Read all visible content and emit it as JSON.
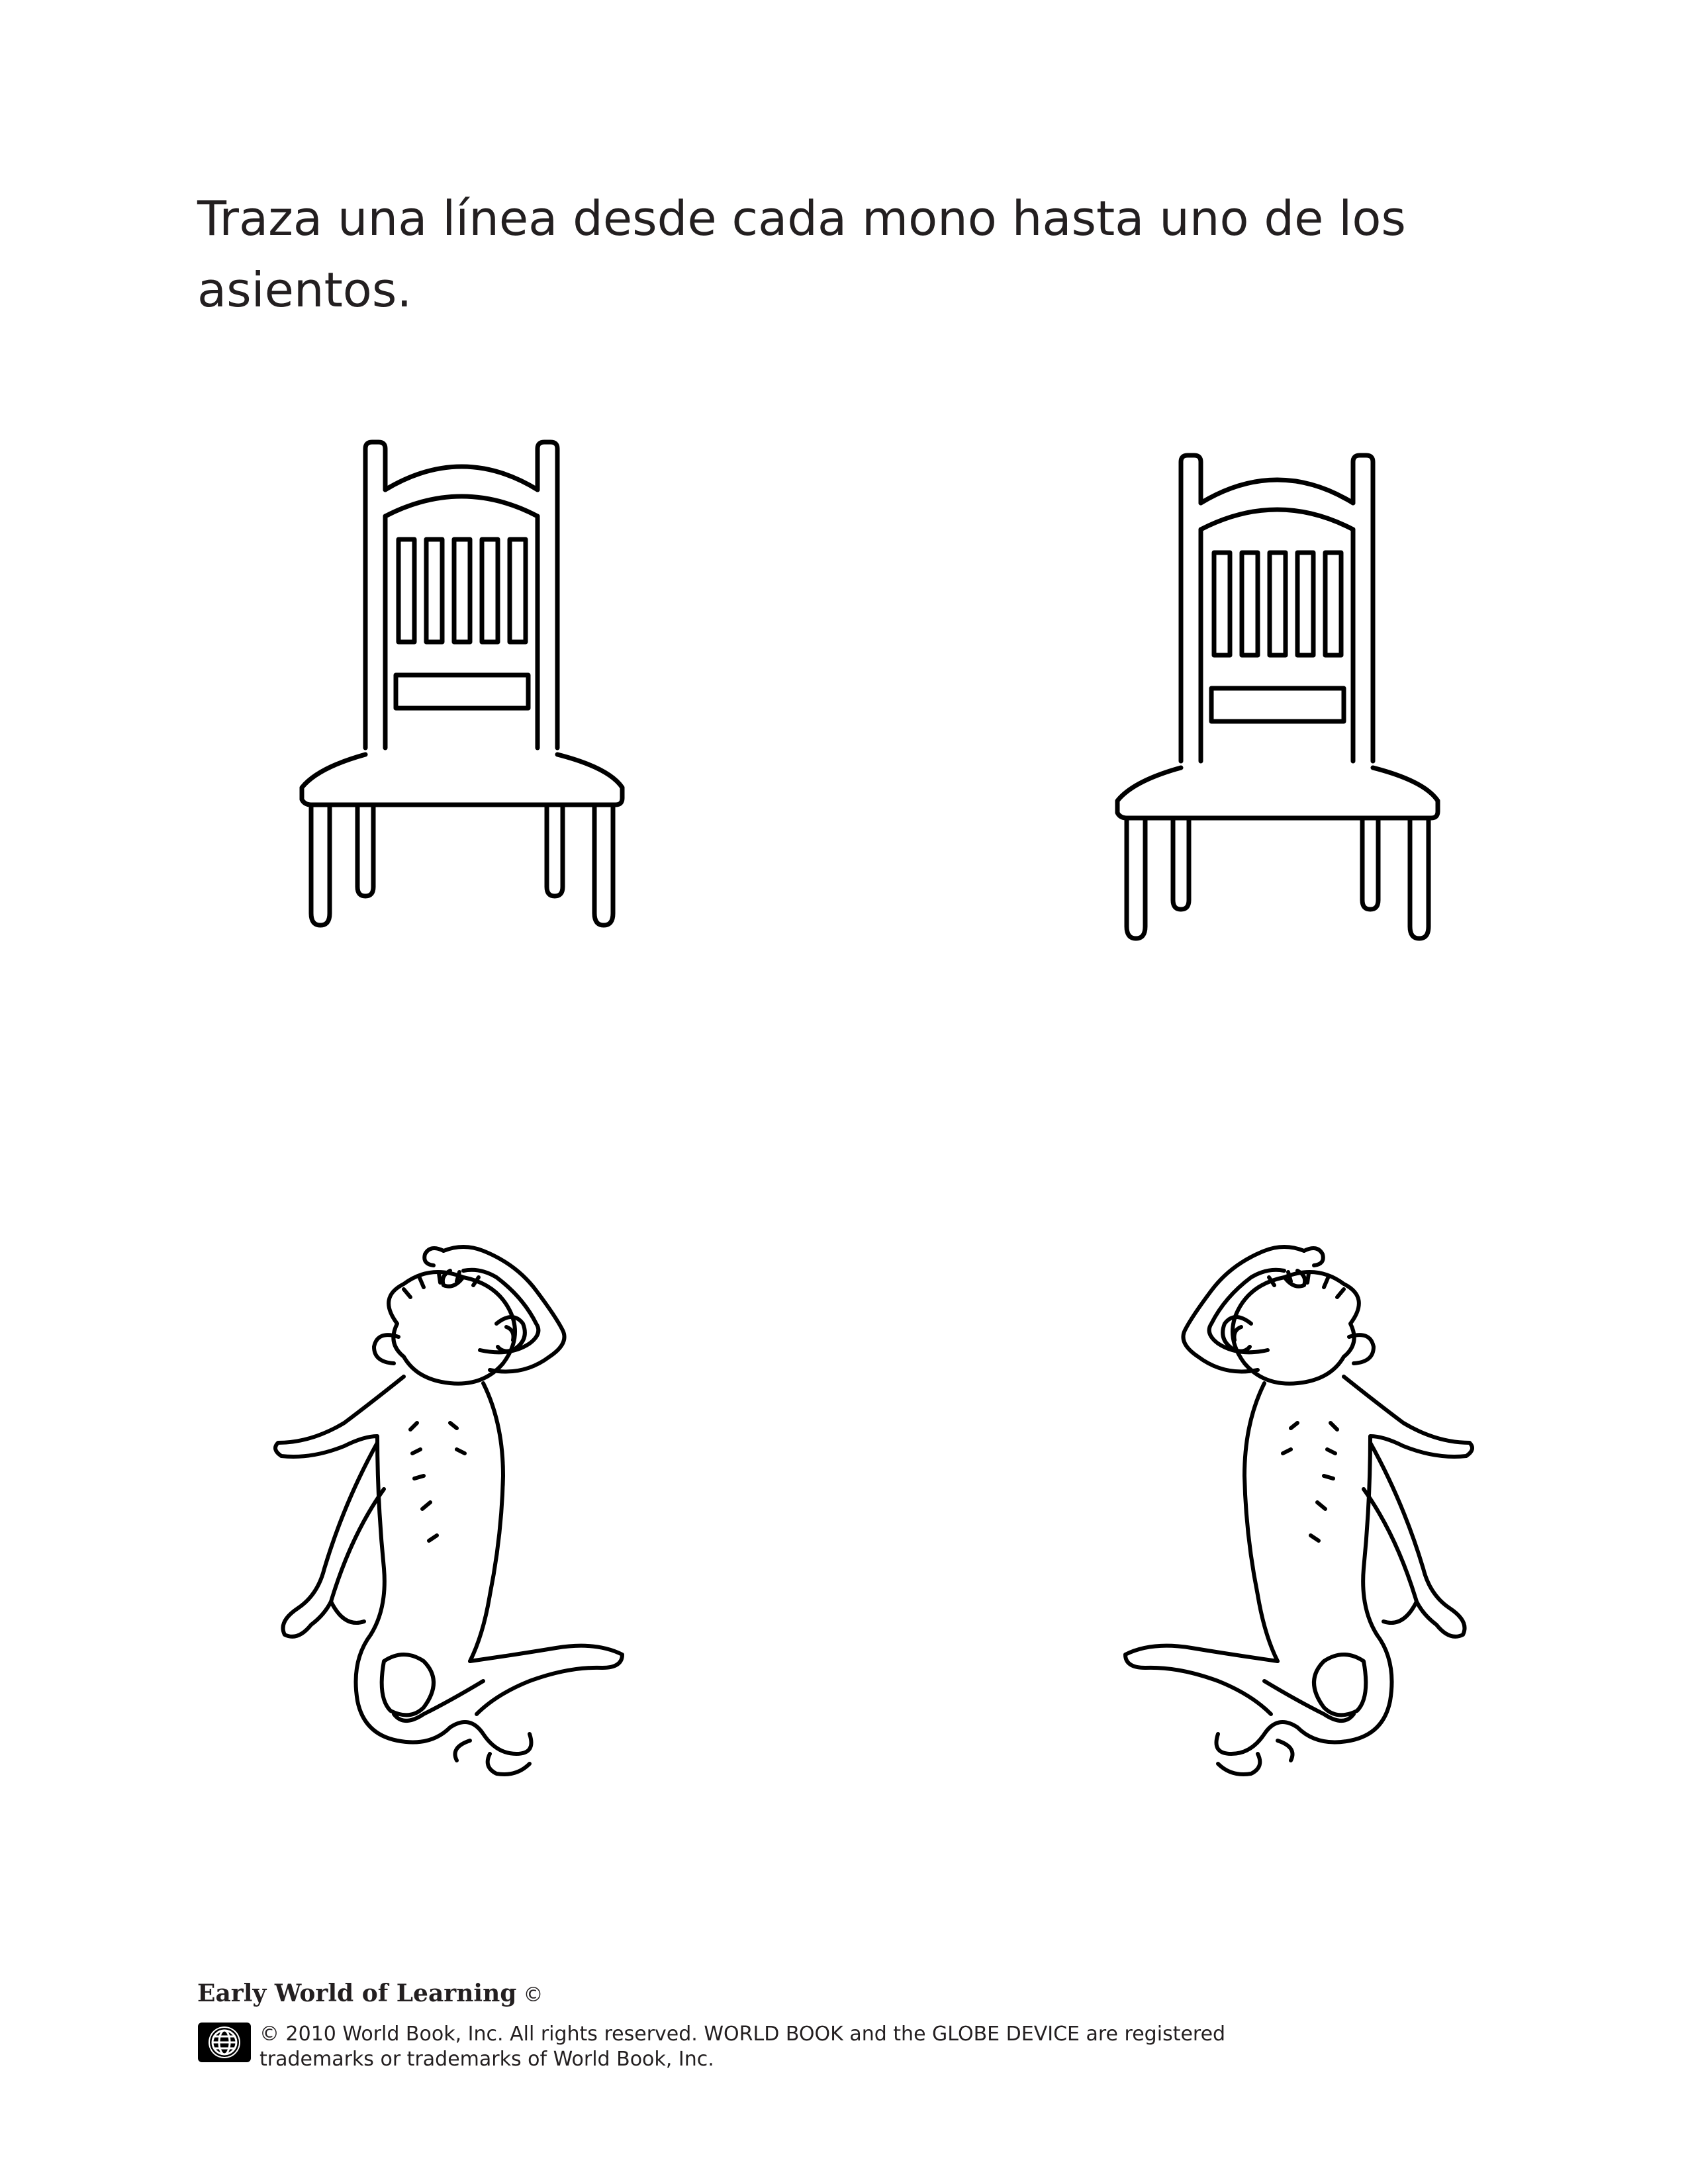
{
  "worksheet": {
    "instruction_line1": "Traza una línea desde cada mono hasta uno de los",
    "instruction_line2": "asientos."
  },
  "illustrations": {
    "chairs": [
      "chair",
      "chair"
    ],
    "monkeys": [
      "monkey",
      "monkey"
    ],
    "line_color": "#000000"
  },
  "footer": {
    "brand": "Early World of Learning",
    "brand_mark": "©",
    "legal_line1": "© 2010 World Book, Inc. All rights reserved. WORLD BOOK and the GLOBE DEVICE are registered",
    "legal_line2": "trademarks or trademarks of World Book, Inc.",
    "logo_icon": "globe-icon"
  }
}
